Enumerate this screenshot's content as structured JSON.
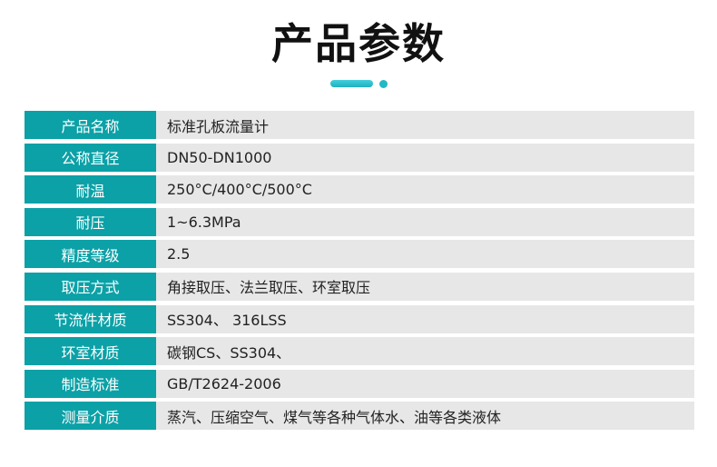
{
  "header": {
    "title": "产品参数",
    "accent_color": "#22b8c6"
  },
  "table": {
    "label_bg": "#0ba1a7",
    "value_bg": "#e7e7e7",
    "rows": [
      {
        "label": "产品名称",
        "value": "标准孔板流量计"
      },
      {
        "label": "公称直径",
        "value": "DN50-DN1000"
      },
      {
        "label": "耐温",
        "value": "250°C/400°C/500°C"
      },
      {
        "label": "耐压",
        "value": "1~6.3MPa"
      },
      {
        "label": "精度等级",
        "value": "2.5"
      },
      {
        "label": "取压方式",
        "value": "角接取压、法兰取压、环室取压"
      },
      {
        "label": "节流件材质",
        "value": "SS304、 316LSS"
      },
      {
        "label": "环室材质",
        "value": "碳钢CS、SS304、"
      },
      {
        "label": "制造标准",
        "value": "GB/T2624-2006"
      },
      {
        "label": "测量介质",
        "value": "蒸汽、压缩空气、煤气等各种气体水、油等各类液体"
      }
    ]
  }
}
